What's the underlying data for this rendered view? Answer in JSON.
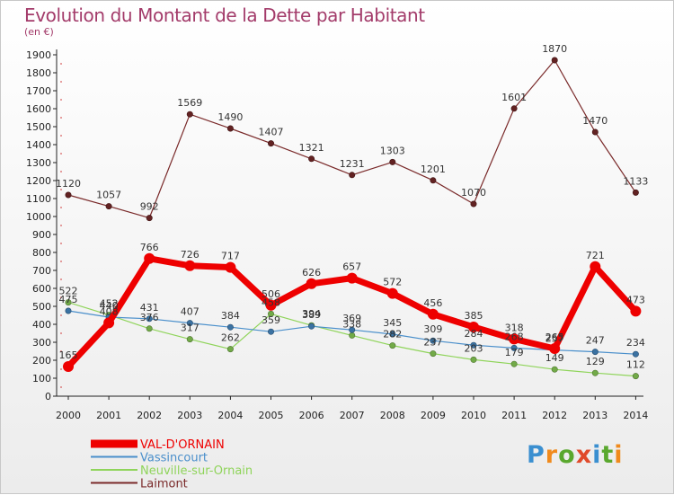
{
  "header": {
    "title": "Evolution du Montant de la Dette par Habitant",
    "subtitle": "(en €)"
  },
  "logo": {
    "text": "Proxiti",
    "colors": [
      "#3a8fd0",
      "#f08a1c",
      "#5aa82e",
      "#e04a2b",
      "#3a8fd0",
      "#5aa82e",
      "#f08a1c"
    ]
  },
  "chart_data": {
    "type": "line",
    "x": [
      2000,
      2001,
      2002,
      2003,
      2004,
      2005,
      2006,
      2007,
      2008,
      2009,
      2010,
      2011,
      2012,
      2013,
      2014
    ],
    "ylim": [
      0,
      1900
    ],
    "yticks": [
      0,
      100,
      200,
      300,
      400,
      500,
      600,
      700,
      800,
      900,
      1000,
      1100,
      1200,
      1300,
      1400,
      1500,
      1600,
      1700,
      1800,
      1900
    ],
    "grid": false,
    "legend_position": "bottom-left",
    "series": [
      {
        "name": "Laimont",
        "color": "#7a2a2a",
        "line_width": 1.2,
        "values": [
          1120,
          1057,
          992,
          1569,
          1490,
          1407,
          1321,
          1231,
          1303,
          1201,
          1070,
          1601,
          1870,
          1470,
          1133
        ]
      },
      {
        "name": "Neuville-sur-Ornain",
        "color": "#8fd45a",
        "line_width": 1.2,
        "values": [
          522,
          452,
          376,
          317,
          262,
          458,
          394,
          338,
          282,
          237,
          203,
          179,
          149,
          129,
          112
        ]
      },
      {
        "name": "Vassincourt",
        "color": "#4a8fcb",
        "line_width": 1.2,
        "values": [
          475,
          440,
          431,
          407,
          384,
          359,
          389,
          369,
          345,
          309,
          284,
          268,
          257,
          247,
          234
        ]
      },
      {
        "name": "VAL-D'ORNAIN",
        "color": "#ee0000",
        "line_width": 7,
        "values": [
          165,
          408,
          766,
          726,
          717,
          506,
          626,
          657,
          572,
          456,
          385,
          318,
          265,
          721,
          473
        ]
      }
    ]
  }
}
